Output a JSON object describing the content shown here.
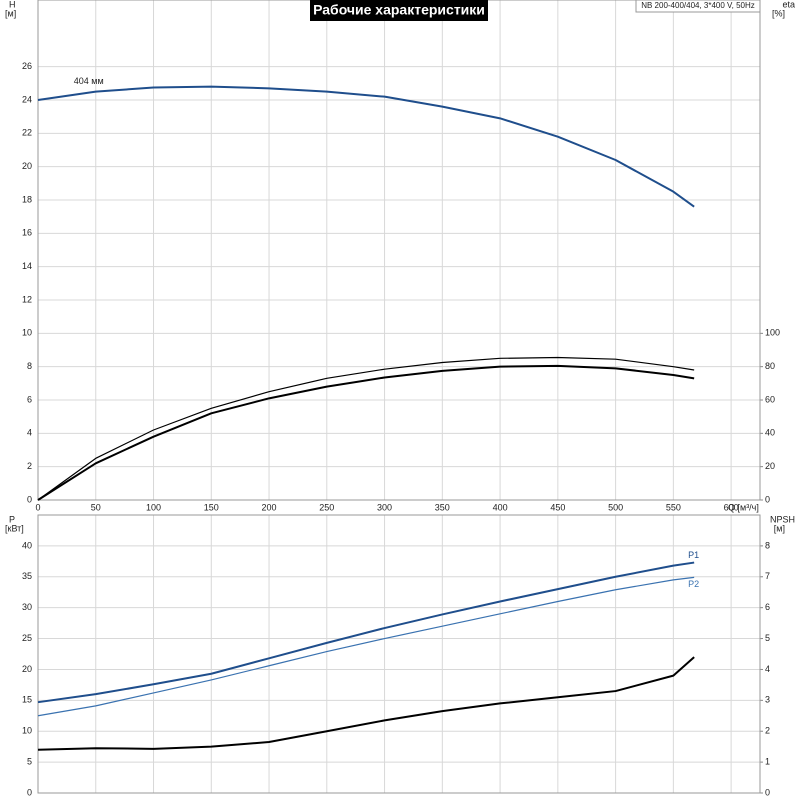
{
  "chart_data": [
    {
      "type": "line",
      "title": "Рабочие характеристики",
      "model": "NB 200-400/404, 3*400 V, 50Hz",
      "ylabel": "H",
      "yunit": "[м]",
      "y2label": "eta",
      "y2unit": "[%]",
      "xlabel": "Q [м³/ч]",
      "x": [
        0,
        50,
        100,
        150,
        200,
        250,
        300,
        350,
        400,
        450,
        500,
        550,
        568
      ],
      "series": [
        {
          "name": "404 мм",
          "color": "#1f4e8c",
          "values": [
            24.0,
            24.5,
            24.75,
            24.8,
            24.7,
            24.5,
            24.2,
            23.6,
            22.9,
            21.8,
            20.4,
            18.5,
            17.6
          ]
        },
        {
          "color": "#000000",
          "axis": "y2",
          "values": [
            0,
            25,
            42,
            55,
            65,
            73,
            78.5,
            82.5,
            85,
            85.5,
            84.5,
            80,
            78
          ]
        },
        {
          "color": "#000000",
          "axis": "y2",
          "values": [
            0,
            22,
            38,
            52,
            61,
            68,
            73.5,
            77.5,
            80,
            80.5,
            79,
            75,
            73
          ]
        }
      ],
      "xlim": [
        0,
        625
      ],
      "xticks": [
        0,
        50,
        100,
        150,
        200,
        250,
        300,
        350,
        400,
        450,
        500,
        550,
        600
      ],
      "ylim": [
        0,
        30
      ],
      "yticks": [
        0,
        2,
        4,
        6,
        8,
        10,
        12,
        14,
        16,
        18,
        20,
        22,
        24,
        26
      ],
      "y2lim": [
        0,
        300
      ],
      "y2ticks": [
        0,
        20,
        40,
        60,
        80,
        100
      ],
      "grid": true
    },
    {
      "type": "line",
      "ylabel": "P",
      "yunit": "[кВт]",
      "y2label": "NPSH",
      "y2unit": "[м]",
      "x": [
        0,
        50,
        100,
        150,
        200,
        250,
        300,
        350,
        400,
        450,
        500,
        550,
        568
      ],
      "series": [
        {
          "name": "P1",
          "color": "#1f4e8c",
          "values": [
            14.7,
            16.0,
            17.6,
            19.3,
            21.8,
            24.3,
            26.7,
            28.9,
            31.0,
            33.0,
            35.0,
            36.8,
            37.3
          ]
        },
        {
          "name": "P2",
          "color": "#3a72b0",
          "values": [
            12.5,
            14.1,
            16.2,
            18.3,
            20.6,
            22.9,
            25.0,
            27.0,
            29.0,
            31.0,
            32.9,
            34.5,
            34.9
          ]
        },
        {
          "color": "#000000",
          "axis": "y2",
          "values": [
            1.4,
            1.45,
            1.43,
            1.5,
            1.65,
            2.0,
            2.35,
            2.65,
            2.9,
            3.1,
            3.3,
            3.8,
            4.4
          ]
        }
      ],
      "xlim": [
        0,
        625
      ],
      "ylim": [
        0,
        45
      ],
      "yticks": [
        0,
        5,
        10,
        15,
        20,
        25,
        30,
        35,
        40
      ],
      "y2lim": [
        0,
        9
      ],
      "y2ticks": [
        0,
        1,
        2,
        3,
        4,
        5,
        6,
        7,
        8
      ],
      "grid": true
    }
  ]
}
